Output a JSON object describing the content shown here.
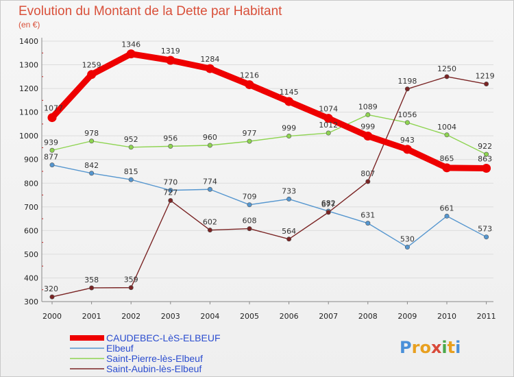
{
  "header": {
    "title": "Evolution du Montant de la Dette par Habitant",
    "subtitle": "(en €)"
  },
  "logo": {
    "letters": [
      "P",
      "r",
      "o",
      "x",
      "i",
      "t",
      "i"
    ],
    "colors": [
      "#4a90d9",
      "#e8a020",
      "#e8a020",
      "#d94a3a",
      "#4aa84a",
      "#e8a020",
      "#4a90d9"
    ]
  },
  "chart_data": {
    "type": "line",
    "title": "Evolution du Montant de la Dette par Habitant",
    "subtitle": "(en €)",
    "xlabel": "",
    "ylabel": "",
    "ylim": [
      300,
      1400
    ],
    "yticks": [
      300,
      400,
      500,
      600,
      700,
      800,
      900,
      1000,
      1100,
      1200,
      1300,
      1400
    ],
    "categories": [
      "2000",
      "2001",
      "2002",
      "2003",
      "2004",
      "2005",
      "2006",
      "2007",
      "2008",
      "2009",
      "2010",
      "2011"
    ],
    "grid": "horizontal",
    "legend_position": "bottom-left",
    "series": [
      {
        "name": "CAUDEBEC-LèS-ELBEUF",
        "color": "#ee0000",
        "emphasis": true,
        "values": [
          1077,
          1259,
          1346,
          1319,
          1284,
          1216,
          1145,
          1074,
          999,
          943,
          865,
          863
        ]
      },
      {
        "name": "Elbeuf",
        "color": "#5596cf",
        "emphasis": false,
        "values": [
          877,
          842,
          815,
          770,
          774,
          709,
          733,
          682,
          631,
          530,
          661,
          573
        ]
      },
      {
        "name": "Saint-Pierre-lès-Elbeuf",
        "color": "#8ed451",
        "emphasis": false,
        "values": [
          939,
          978,
          952,
          956,
          960,
          977,
          999,
          1012,
          1089,
          1056,
          1004,
          922
        ]
      },
      {
        "name": "Saint-Aubin-lès-Elbeuf",
        "color": "#7a2424",
        "emphasis": false,
        "values": [
          320,
          358,
          359,
          727,
          602,
          608,
          564,
          677,
          807,
          1198,
          1250,
          1219
        ]
      }
    ]
  }
}
